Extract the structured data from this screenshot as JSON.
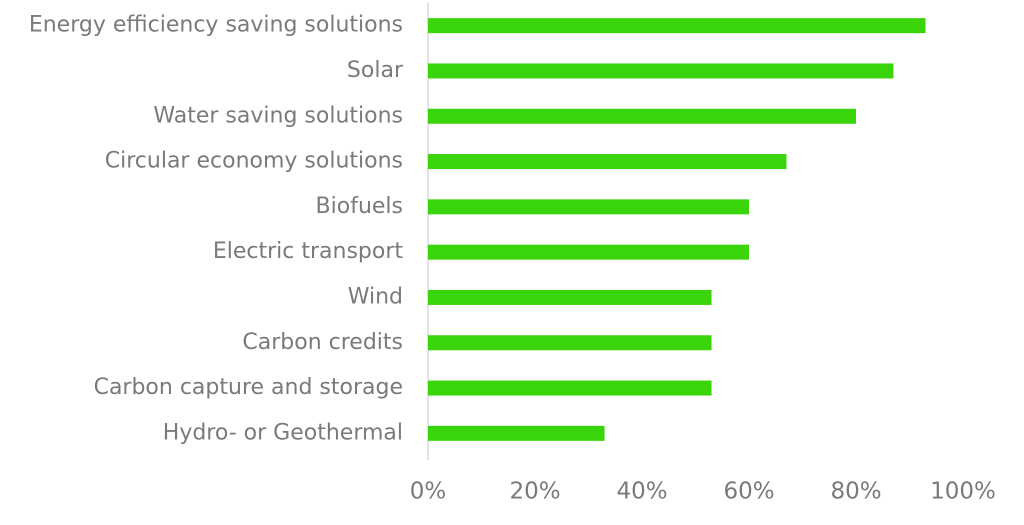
{
  "chart_data": {
    "type": "bar",
    "orientation": "horizontal",
    "categories": [
      "Energy efficiency saving solutions",
      "Solar",
      "Water saving solutions",
      "Circular economy solutions",
      "Biofuels",
      "Electric transport",
      "Wind",
      "Carbon credits",
      "Carbon capture and storage",
      "Hydro- or Geothermal"
    ],
    "values": [
      93,
      87,
      80,
      67,
      60,
      60,
      53,
      53,
      53,
      33
    ],
    "color": "#3ad40b",
    "xlim": [
      0,
      100
    ],
    "xticks": [
      {
        "value": 0,
        "label": "0%"
      },
      {
        "value": 20,
        "label": "20%"
      },
      {
        "value": 40,
        "label": "40%"
      },
      {
        "value": 60,
        "label": "60%"
      },
      {
        "value": 80,
        "label": "80%"
      },
      {
        "value": 100,
        "label": "100%"
      }
    ]
  }
}
